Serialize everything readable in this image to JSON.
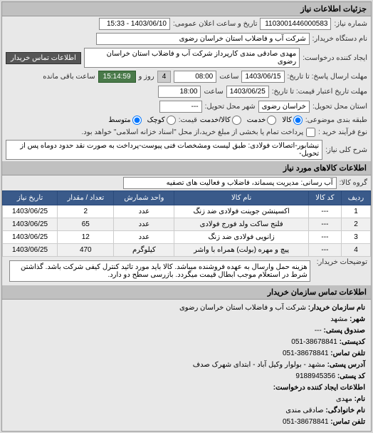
{
  "header": {
    "title": "جزئیات اطلاعات نیاز"
  },
  "top": {
    "number_label": "شماره نیاز:",
    "number_value": "1103001446000583",
    "announce_label": "تاریخ و ساعت اعلان عمومی:",
    "announce_value": "1403/06/10 - 15:33"
  },
  "org": {
    "name_label": "نام دستگاه خریدار:",
    "name_value": "شرکت آب و فاضلاب استان خراسان رضوی",
    "requester_label": "ایجاد کننده درخواست:",
    "requester_value": "مهدی صادقی مندی کارپرداز شرکت آب و فاضلاب استان خراسان رضوی",
    "contact_button": "اطلاعات تماس خریدار"
  },
  "deadline": {
    "response_label": "مهلت ارسال پاسخ: تا تاریخ:",
    "response_date": "1403/06/15",
    "response_time_label": "ساعت",
    "response_time": "08:00",
    "days_label": "روز و",
    "days_value": "4",
    "countdown_label": "ساعت باقی مانده",
    "countdown": "15:14:59",
    "validity_label": "مهلت تاریخ اعتبار قیمت: تا تاریخ:",
    "validity_date": "1403/06/25",
    "validity_time_label": "ساعت",
    "validity_time": "18:00"
  },
  "location": {
    "province_label": "استان محل تحویل:",
    "province_value": "خراسان رضوی",
    "city_label": "شهر محل تحویل:",
    "city_value": "---"
  },
  "budget": {
    "label": "طبقه بندی موضوعی:",
    "options": [
      "کالا",
      "خدمت",
      "کالا/خدمت"
    ],
    "selected": 0,
    "size_label": "قیمت:",
    "size_options": [
      "کوچک",
      "متوسط"
    ],
    "size_selected": 1
  },
  "process": {
    "label": "نوع فرآیند خرید :",
    "note": "پرداخت تمام یا بخشی از مبلغ خرید،از محل \"اسناد خزانه اسلامی\" خواهد بود."
  },
  "general": {
    "label": "شرح کلی نیاز:",
    "value": "نیشابور-اتصالات فولادی: طبق لیست ومشخصات فنی پیوست-پرداخت به صورت نقد حدود دوماه پس از تحویل-"
  },
  "goods_header": "اطلاعات کالاهای مورد نیاز",
  "group": {
    "label": "گروه کالا:",
    "value": "آب رسانی: مدیریت پسماند، فاضلاب و فعالیت های تصفیه"
  },
  "table": {
    "columns": [
      "ردیف",
      "کد کالا",
      "نام کالا",
      "واحد شمارش",
      "تعداد / مقدار",
      "تاریخ نیاز"
    ],
    "rows": [
      [
        "1",
        "---",
        "اکسپنشن جوینت فولادی ضد زنگ",
        "عدد",
        "2",
        "1403/06/25"
      ],
      [
        "2",
        "---",
        "فلنج ساکت ولد فورج فولادی",
        "عدد",
        "65",
        "1403/06/25"
      ],
      [
        "3",
        "---",
        "زانویی فولادی ضد زنگ",
        "عدد",
        "12",
        "1403/06/25"
      ],
      [
        "4",
        "---",
        "پیچ و مهره (بولت) همراه با واشر",
        "کیلوگرم",
        "470",
        "1403/06/25"
      ]
    ]
  },
  "buyer_desc": {
    "label": "توضیحات خریدار:",
    "value": "هزینه حمل وارسال به عهده فروشنده میباشد. کالا باید مورد تائید کنترل کیفی شرکت باشد. گذاشتن شرط در استعلام موجب ابطال قیمت میگردد. بازرسی سطح دو دارد."
  },
  "contact_header": "اطلاعات تماس سازمان خریدار",
  "contact": {
    "org_name_label": "نام سازمان خریدار:",
    "org_name": "شرکت آب و فاضلاب استان خراسان رضوی",
    "city_label": "شهر:",
    "city": "مشهد",
    "postal_label": "صندوق پستی:",
    "postal": "---",
    "zipcode_label": "کدپستی:",
    "zipcode": "38678841-051",
    "phone_label": "تلفن تماس:",
    "phone": "38678841-051",
    "address_label": "آدرس پستی:",
    "address": "مشهد - بولوار وکیل آباد - ابتدای شهرک صدف",
    "kp_label": "کد پستی:",
    "kp": "9188945356",
    "creator_header": "اطلاعات ایجاد کننده درخواست:",
    "name_label": "نام:",
    "name": "مهدی",
    "family_label": "نام خانوادگی:",
    "family": "صادقی مندی",
    "tel_label": "تلفن تماس:",
    "tel": "38678841-051"
  }
}
